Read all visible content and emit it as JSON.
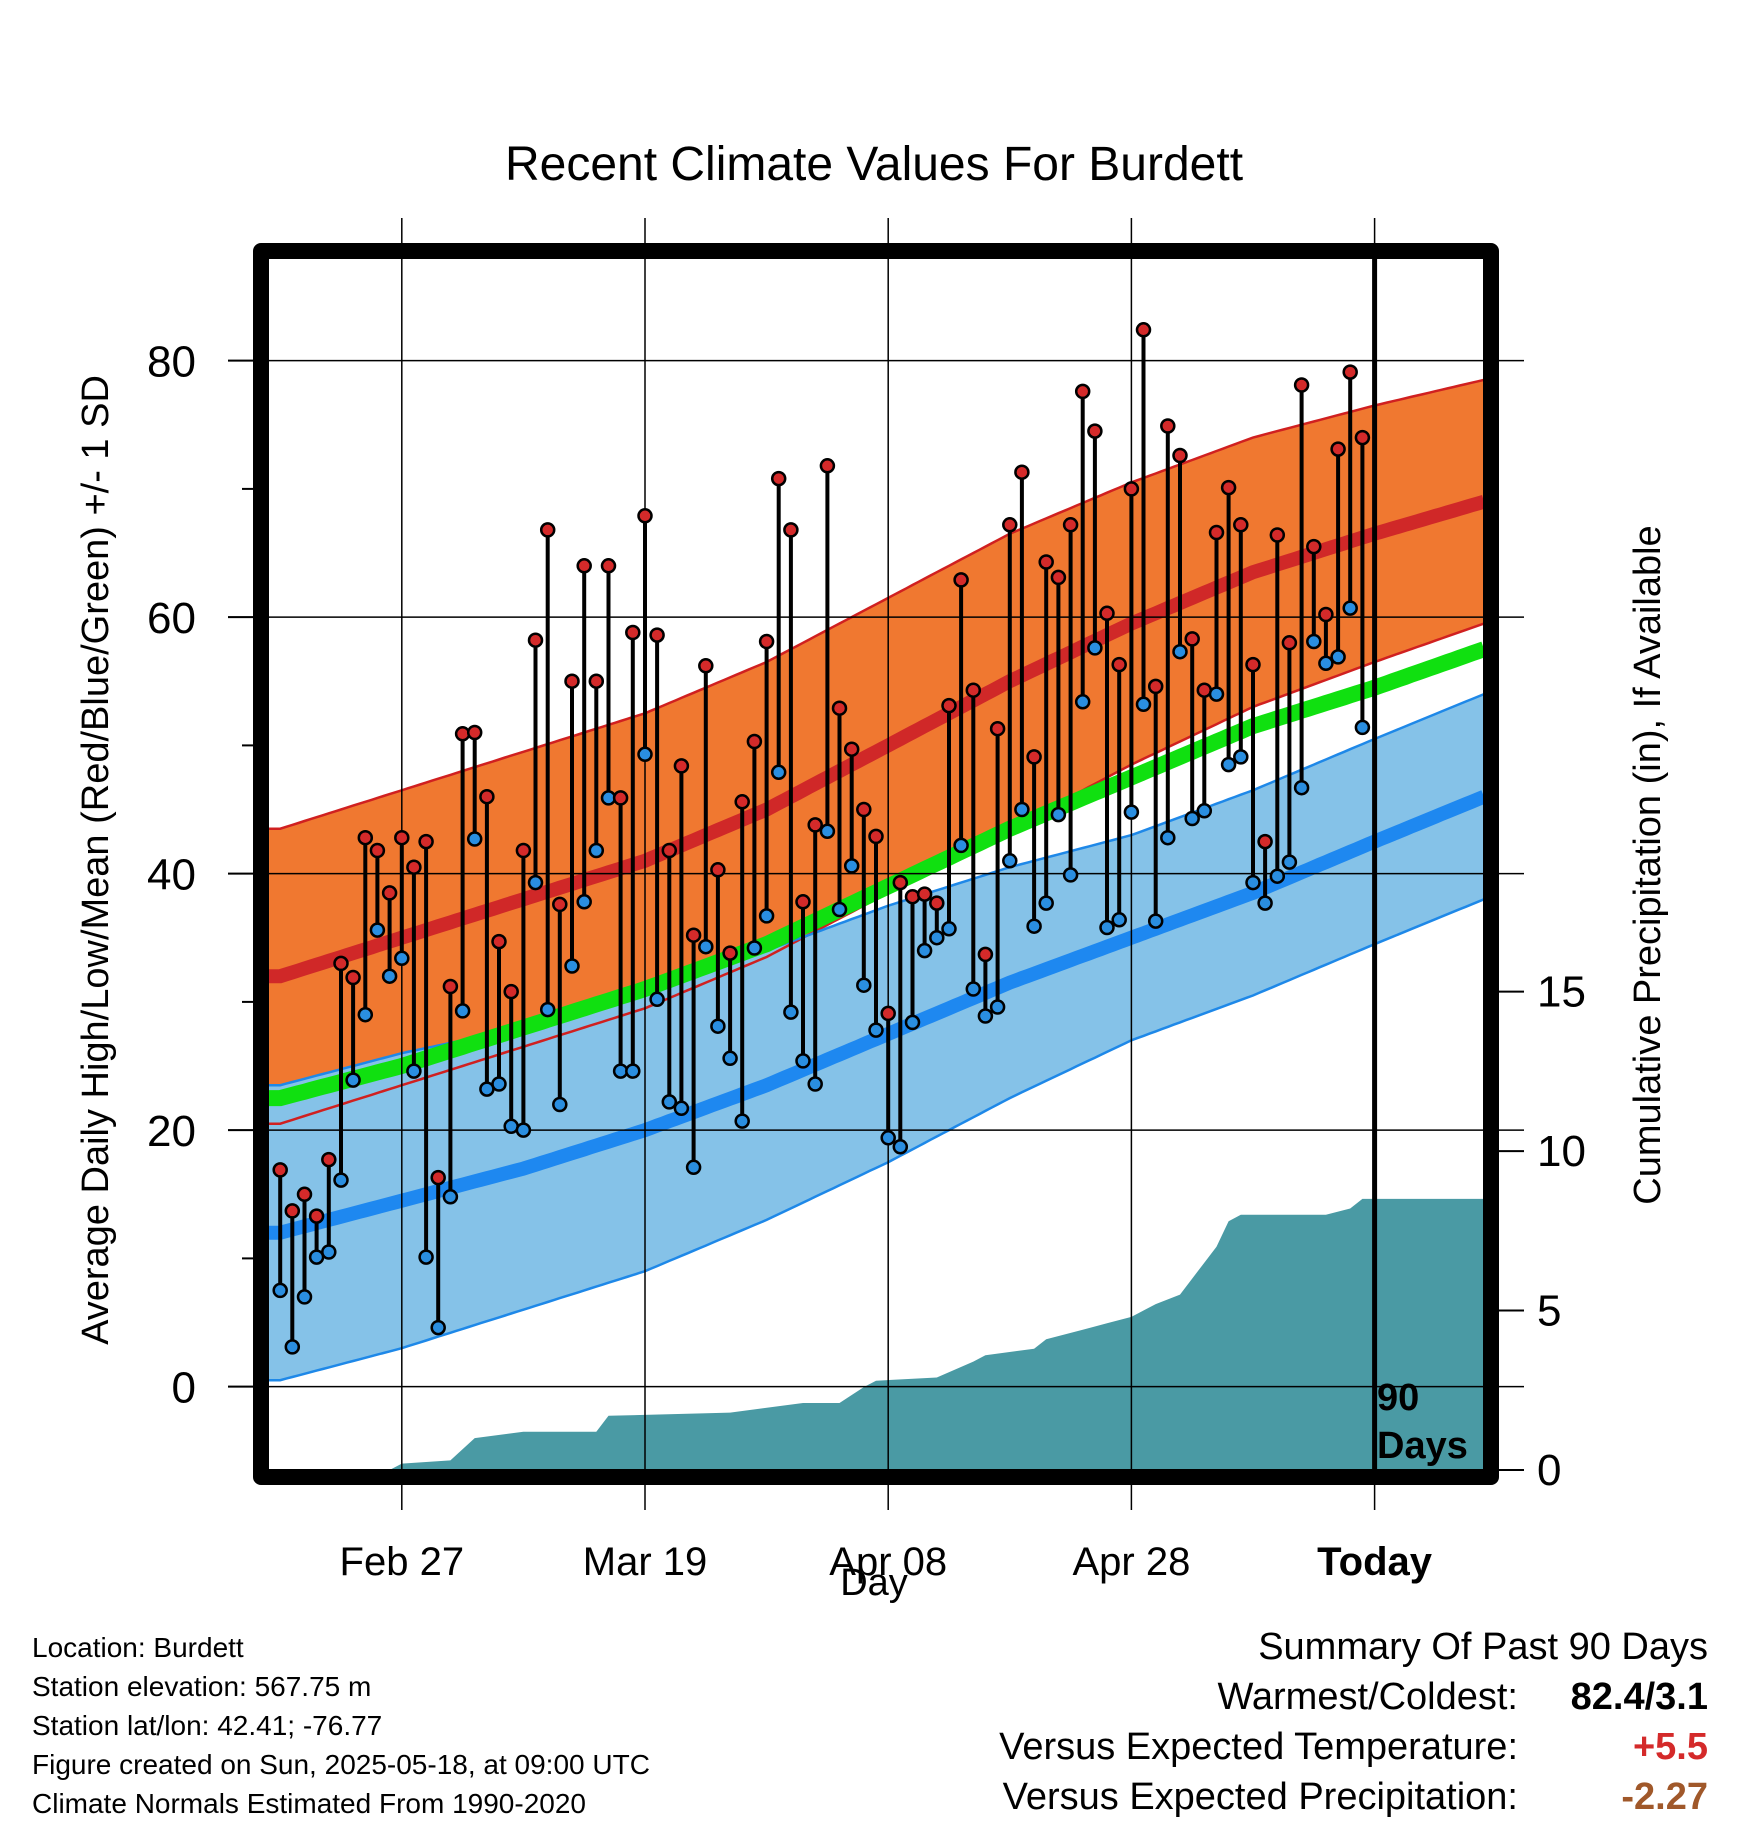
{
  "chart_data": {
    "type": "line",
    "title": "Recent Climate Values For Burdett",
    "xlabel": "Day",
    "ylabel": "Average Daily High/Low/Mean (Red/Blue/Green) +/- 1 SD",
    "y2label": "Cumulative Precipitation (in), If Available",
    "x_tick_labels": [
      "Feb 27",
      "Mar 19",
      "Apr 08",
      "Apr 28",
      "Today"
    ],
    "x_tick_days": [
      10,
      30,
      50,
      70,
      90
    ],
    "xlim": [
      -1,
      99
    ],
    "ylim": [
      -6.5,
      88
    ],
    "y_ticks": [
      0,
      20,
      40,
      60,
      80
    ],
    "y2_ticks": [
      0,
      5,
      10,
      15
    ],
    "y2lim": [
      0,
      38
    ],
    "today_marker": {
      "day": 90,
      "label_line1": "90",
      "label_line2": "Days"
    },
    "grid": true,
    "colors": {
      "high_band": "#f07830",
      "high_band_edge": "#d02020",
      "high_mean": "#d02828",
      "low_band": "#85c2e8",
      "low_band_edge": "#1e88e8",
      "low_mean": "#1e88f0",
      "mean_line": "#10e010",
      "precip": "#4a9aa4",
      "high_point": "#d42a2a",
      "low_point": "#2a8ee0"
    },
    "normals": {
      "days": [
        0,
        10,
        20,
        30,
        40,
        50,
        60,
        70,
        80,
        90,
        99
      ],
      "high_mean": [
        32,
        35,
        38,
        41,
        45,
        50,
        55,
        59.5,
        63.5,
        66.5,
        69
      ],
      "high_sd": [
        11.5,
        11.5,
        11.5,
        11.5,
        11.5,
        11.5,
        11.5,
        11,
        10.5,
        10,
        9.5
      ],
      "low_mean": [
        12,
        14.5,
        17,
        20,
        23.5,
        27.5,
        31.5,
        35,
        38.5,
        42.5,
        46
      ],
      "low_sd": [
        11.5,
        11.5,
        11,
        11,
        10.5,
        10,
        9,
        8,
        8,
        8,
        8
      ],
      "mean": [
        22.5,
        25,
        28,
        31,
        34.5,
        39,
        43.5,
        47.5,
        51.5,
        54.5,
        57.5
      ]
    },
    "series": [
      {
        "name": "High",
        "values": [
          16.9,
          13.7,
          15,
          13.3,
          17.7,
          33,
          31.9,
          42.8,
          41.8,
          38.5,
          42.8,
          40.5,
          42.5,
          16.3,
          31.2,
          50.9,
          51,
          46,
          34.7,
          30.8,
          41.8,
          58.2,
          66.8,
          37.6,
          55,
          64,
          55,
          64,
          45.9,
          58.8,
          67.9,
          58.6,
          41.8,
          48.4,
          35.2,
          56.2,
          40.3,
          33.8,
          45.6,
          50.3,
          58.1,
          70.8,
          66.8,
          37.8,
          43.8,
          71.8,
          52.9,
          49.7,
          45,
          42.9,
          29.1,
          39.3,
          38.2,
          38.4,
          37.7,
          53.1,
          62.9,
          54.3,
          33.7,
          51.3,
          67.2,
          71.3,
          49.1,
          64.3,
          63.1,
          67.2,
          77.6,
          74.5,
          60.3,
          56.3,
          70,
          82.4,
          54.6,
          74.9,
          72.6,
          58.3,
          54.3,
          66.6,
          70.1,
          67.2,
          56.3,
          42.5,
          66.4,
          58,
          78.1,
          65.5,
          60.2,
          73.1,
          79.1,
          74
        ]
      },
      {
        "name": "Low",
        "values": [
          7.5,
          3.1,
          7,
          10.1,
          10.5,
          16.1,
          23.9,
          29,
          35.6,
          32,
          33.4,
          24.6,
          10.1,
          4.6,
          14.8,
          29.3,
          42.7,
          23.2,
          23.6,
          20.3,
          20,
          39.3,
          29.4,
          22,
          32.8,
          37.8,
          41.8,
          45.9,
          24.6,
          24.6,
          49.3,
          30.2,
          22.2,
          21.7,
          17.1,
          34.3,
          28.1,
          25.6,
          20.7,
          34.2,
          36.7,
          47.9,
          29.2,
          25.4,
          23.6,
          43.3,
          37.2,
          40.6,
          31.3,
          27.8,
          19.4,
          18.7,
          28.4,
          34,
          35,
          35.7,
          42.2,
          31,
          28.9,
          29.6,
          41,
          45,
          35.9,
          37.7,
          44.6,
          39.9,
          53.4,
          57.6,
          35.8,
          36.4,
          44.8,
          53.2,
          36.3,
          42.8,
          57.3,
          44.3,
          44.9,
          54,
          48.5,
          49.1,
          39.3,
          37.7,
          39.8,
          40.9,
          46.7,
          58.1,
          56.4,
          56.9,
          60.7,
          51.4
        ]
      },
      {
        "name": "Cumulative Precipitation",
        "days": [
          -1,
          9,
          10,
          14,
          16,
          20,
          26,
          27,
          37,
          43,
          46,
          48,
          49,
          54,
          57,
          58,
          62,
          63,
          66,
          67,
          68,
          70,
          72,
          74,
          76,
          77,
          78,
          79,
          86,
          88,
          89,
          99
        ],
        "values": [
          0,
          0,
          0.2,
          0.3,
          1,
          1.2,
          1.2,
          1.7,
          1.8,
          2.1,
          2.1,
          2.6,
          2.8,
          2.9,
          3.4,
          3.6,
          3.8,
          4.1,
          4.4,
          4.5,
          4.6,
          4.8,
          5.2,
          5.5,
          6.5,
          7,
          7.8,
          8,
          8,
          8.2,
          8.5,
          8.5
        ]
      }
    ]
  },
  "info": {
    "location": "Location: Burdett",
    "elevation": "Station elevation: 567.75 m",
    "latlon": "Station lat/lon: 42.41; -76.77",
    "created": "Figure created on Sun, 2025-05-18, at 09:00 UTC",
    "normals": "Climate Normals Estimated From 1990-2020"
  },
  "summary": {
    "heading": "Summary Of Past 90 Days",
    "warmest_label": "Warmest/Coldest:",
    "warmest_value": "82.4/3.1",
    "temp_label": "Versus Expected Temperature:",
    "temp_value": "+5.5",
    "temp_color": "#d42a2a",
    "precip_label": "Versus Expected Precipitation:",
    "precip_value": "-2.27",
    "precip_color": "#a0582a"
  }
}
